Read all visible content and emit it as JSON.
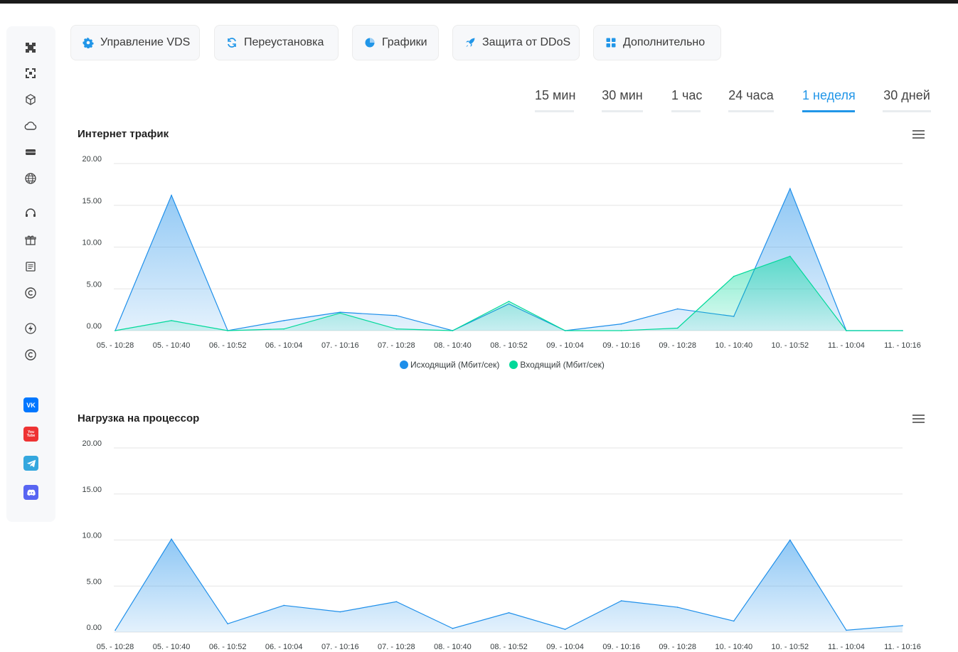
{
  "nav": {
    "tabs": [
      {
        "label": "Управление VDS",
        "icon": "gear-icon"
      },
      {
        "label": "Переустановка",
        "icon": "refresh-icon"
      },
      {
        "label": "Графики",
        "icon": "pie-chart-icon"
      },
      {
        "label": "Защита от DDoS",
        "icon": "rocket-icon"
      },
      {
        "label": "Дополнительно",
        "icon": "grid-icon"
      }
    ]
  },
  "periods": {
    "items": [
      "15 мин",
      "30 мин",
      "1 час",
      "24 часа",
      "1 неделя",
      "30 дней"
    ],
    "active": "1 неделя"
  },
  "sidebar": {
    "icons": [
      "minecraft-icon",
      "qr-icon",
      "cube-icon",
      "cloud-icon",
      "server-icon",
      "globe-icon",
      "headset-icon",
      "gift-icon",
      "news-icon",
      "copyright-icon",
      "lightning-icon",
      "copyright-icon-2"
    ],
    "social": [
      {
        "label": "VK",
        "icon": "vk-icon",
        "color": "#0077ff"
      },
      {
        "label": "You Tube",
        "icon": "youtube-icon",
        "color": "#ee3333"
      },
      {
        "label": "",
        "icon": "telegram-icon",
        "color": "#34a7de"
      },
      {
        "label": "",
        "icon": "discord-icon",
        "color": "#5865f2"
      }
    ]
  },
  "chart_data": [
    {
      "type": "area",
      "title": "Интернет трафик",
      "x": [
        "05. - 10:28",
        "05. - 10:40",
        "06. - 10:52",
        "06. - 10:04",
        "07. - 10:16",
        "07. - 10:28",
        "08. - 10:40",
        "08. - 10:52",
        "09. - 10:04",
        "09. - 10:16",
        "09. - 10:28",
        "10. - 10:40",
        "10. - 10:52",
        "11. - 10:04",
        "11. - 10:16"
      ],
      "yticks": [
        "20.00",
        "15.00",
        "10.00",
        "5.00",
        "0.00"
      ],
      "ylim": [
        0,
        20
      ],
      "series": [
        {
          "name": "Исходящий (Мбит/сек)",
          "color": "#1e8fea",
          "values": [
            0,
            16.2,
            0,
            1.2,
            2.2,
            1.8,
            0,
            3.2,
            0,
            0.8,
            2.6,
            1.7,
            17,
            0,
            0
          ]
        },
        {
          "name": "Входящий (Мбит/сек)",
          "color": "#00d99a",
          "values": [
            0,
            1.2,
            0,
            0.2,
            2.1,
            0.2,
            0,
            3.5,
            0,
            0,
            0.3,
            6.5,
            8.9,
            0,
            0
          ]
        }
      ],
      "grid": true,
      "legend": "bottom"
    },
    {
      "type": "area",
      "title": "Нагрузка на процессор",
      "x": [
        "05. - 10:28",
        "05. - 10:40",
        "06. - 10:52",
        "06. - 10:04",
        "07. - 10:16",
        "07. - 10:28",
        "08. - 10:40",
        "08. - 10:52",
        "09. - 10:04",
        "09. - 10:16",
        "09. - 10:28",
        "10. - 10:40",
        "10. - 10:52",
        "11. - 10:04",
        "11. - 10:16"
      ],
      "yticks": [
        "20.00",
        "15.00",
        "10.00",
        "5.00",
        "0.00"
      ],
      "ylim": [
        0,
        20
      ],
      "series": [
        {
          "name": "",
          "color": "#1e8fea",
          "values": [
            0.2,
            10.1,
            0.9,
            2.9,
            2.2,
            3.3,
            0.4,
            2.1,
            0.3,
            3.4,
            2.7,
            1.2,
            10,
            0.2,
            0.7
          ]
        }
      ],
      "grid": true
    }
  ]
}
